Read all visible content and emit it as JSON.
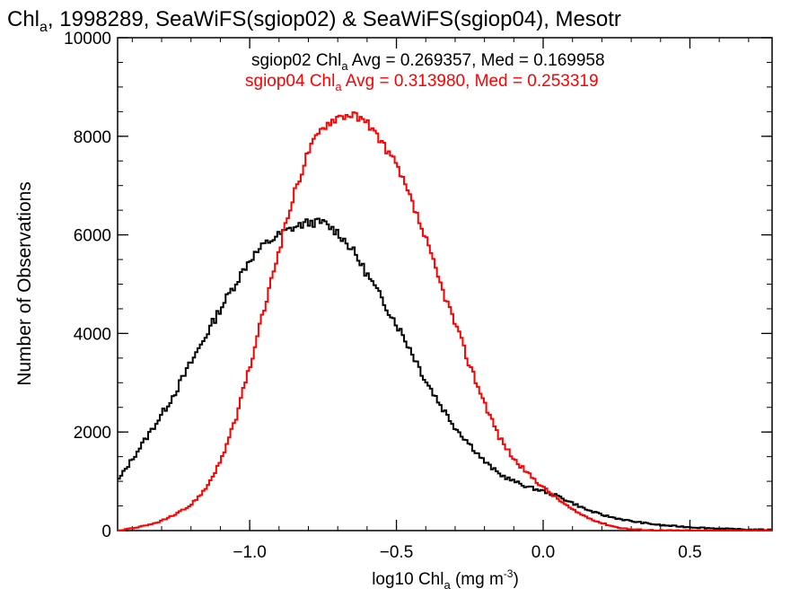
{
  "chart_data": {
    "type": "line",
    "title": {
      "pre": "Chl",
      "sub": "a",
      "post": ", 1998289, SeaWiFS(sgiop02) & SeaWiFS(sgiop04), Mesotr"
    },
    "xlabel": {
      "pre": "log10 Chl",
      "sub": "a",
      "mid": " (mg m",
      "sup": "-3",
      "post": ")"
    },
    "ylabel": "Number of Observations",
    "xlim": [
      -1.45,
      0.78
    ],
    "ylim": [
      0,
      10000
    ],
    "x_ticks": [
      {
        "value": -1.0,
        "label": "−1.0"
      },
      {
        "value": -0.5,
        "label": "−0.5"
      },
      {
        "value": 0.0,
        "label": "0.0"
      },
      {
        "value": 0.5,
        "label": "0.5"
      }
    ],
    "y_ticks": [
      {
        "value": 0,
        "label": "0"
      },
      {
        "value": 2000,
        "label": "2000"
      },
      {
        "value": 4000,
        "label": "4000"
      },
      {
        "value": 6000,
        "label": "6000"
      },
      {
        "value": 8000,
        "label": "8000"
      },
      {
        "value": 10000,
        "label": "10000"
      }
    ],
    "legend_placement": "top-center",
    "grid": false,
    "series": [
      {
        "key": "sgiop02",
        "color": "#000000",
        "legend": {
          "pre": "sgiop02 Chl",
          "sub": "a",
          "post": " Avg = 0.269357, Med = 0.169958"
        },
        "x": [
          -1.45,
          -1.4,
          -1.35,
          -1.3,
          -1.25,
          -1.2,
          -1.15,
          -1.1,
          -1.05,
          -1.0,
          -0.95,
          -0.9,
          -0.85,
          -0.8,
          -0.75,
          -0.7,
          -0.65,
          -0.6,
          -0.55,
          -0.5,
          -0.45,
          -0.4,
          -0.35,
          -0.3,
          -0.25,
          -0.2,
          -0.15,
          -0.1,
          -0.05,
          0.0,
          0.05,
          0.1,
          0.15,
          0.2,
          0.25,
          0.3,
          0.4,
          0.5,
          0.6,
          0.7,
          0.78
        ],
        "y": [
          1000,
          1450,
          1900,
          2350,
          2850,
          3400,
          3950,
          4500,
          5000,
          5500,
          5800,
          6000,
          6150,
          6250,
          6250,
          6050,
          5700,
          5200,
          4700,
          4200,
          3650,
          3050,
          2550,
          2100,
          1750,
          1400,
          1150,
          1000,
          880,
          800,
          700,
          560,
          420,
          320,
          250,
          190,
          110,
          70,
          40,
          20,
          15
        ]
      },
      {
        "key": "sgiop04",
        "color": "#ff0000",
        "legend": {
          "pre": "sgiop04 Chl",
          "sub": "a",
          "post": " Avg = 0.313980, Med = 0.253319"
        },
        "x": [
          -1.45,
          -1.4,
          -1.35,
          -1.3,
          -1.25,
          -1.2,
          -1.15,
          -1.1,
          -1.05,
          -1.0,
          -0.95,
          -0.9,
          -0.85,
          -0.8,
          -0.75,
          -0.7,
          -0.65,
          -0.6,
          -0.55,
          -0.5,
          -0.45,
          -0.4,
          -0.35,
          -0.3,
          -0.25,
          -0.2,
          -0.15,
          -0.1,
          -0.05,
          0.0,
          0.05,
          0.1,
          0.15,
          0.2,
          0.25,
          0.3,
          0.4,
          0.5,
          0.6,
          0.7,
          0.78
        ],
        "y": [
          0,
          50,
          100,
          200,
          330,
          520,
          850,
          1400,
          2200,
          3300,
          4500,
          5700,
          6800,
          7700,
          8200,
          8400,
          8450,
          8250,
          7900,
          7400,
          6700,
          5900,
          5000,
          4200,
          3350,
          2600,
          1900,
          1450,
          1150,
          880,
          640,
          420,
          270,
          150,
          70,
          25,
          5,
          0,
          0,
          0,
          0
        ]
      }
    ]
  }
}
